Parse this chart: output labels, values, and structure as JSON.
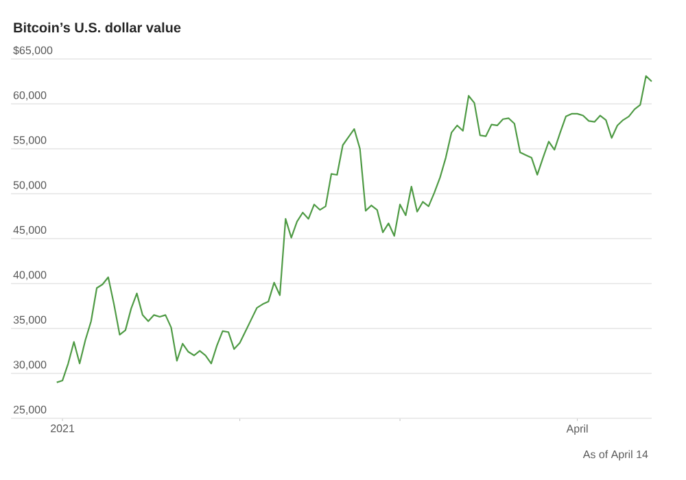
{
  "chart_data": {
    "type": "line",
    "title": "Bitcoin’s U.S. dollar value",
    "x": [
      "2020-12-31",
      "2021-01-01",
      "2021-01-02",
      "2021-01-03",
      "2021-01-04",
      "2021-01-05",
      "2021-01-06",
      "2021-01-07",
      "2021-01-08",
      "2021-01-09",
      "2021-01-10",
      "2021-01-11",
      "2021-01-12",
      "2021-01-13",
      "2021-01-14",
      "2021-01-15",
      "2021-01-16",
      "2021-01-17",
      "2021-01-18",
      "2021-01-19",
      "2021-01-20",
      "2021-01-21",
      "2021-01-22",
      "2021-01-23",
      "2021-01-24",
      "2021-01-25",
      "2021-01-26",
      "2021-01-27",
      "2021-01-28",
      "2021-01-29",
      "2021-01-30",
      "2021-01-31",
      "2021-02-01",
      "2021-02-02",
      "2021-02-03",
      "2021-02-04",
      "2021-02-05",
      "2021-02-06",
      "2021-02-07",
      "2021-02-08",
      "2021-02-09",
      "2021-02-10",
      "2021-02-11",
      "2021-02-12",
      "2021-02-13",
      "2021-02-14",
      "2021-02-15",
      "2021-02-16",
      "2021-02-17",
      "2021-02-18",
      "2021-02-19",
      "2021-02-20",
      "2021-02-21",
      "2021-02-22",
      "2021-02-23",
      "2021-02-24",
      "2021-02-25",
      "2021-02-26",
      "2021-02-27",
      "2021-02-28",
      "2021-03-01",
      "2021-03-02",
      "2021-03-03",
      "2021-03-04",
      "2021-03-05",
      "2021-03-06",
      "2021-03-07",
      "2021-03-08",
      "2021-03-09",
      "2021-03-10",
      "2021-03-11",
      "2021-03-12",
      "2021-03-13",
      "2021-03-14",
      "2021-03-15",
      "2021-03-16",
      "2021-03-17",
      "2021-03-18",
      "2021-03-19",
      "2021-03-20",
      "2021-03-21",
      "2021-03-22",
      "2021-03-23",
      "2021-03-24",
      "2021-03-25",
      "2021-03-26",
      "2021-03-27",
      "2021-03-28",
      "2021-03-29",
      "2021-03-30",
      "2021-03-31",
      "2021-04-01",
      "2021-04-02",
      "2021-04-03",
      "2021-04-04",
      "2021-04-05",
      "2021-04-06",
      "2021-04-07",
      "2021-04-08",
      "2021-04-09",
      "2021-04-10",
      "2021-04-11",
      "2021-04-12",
      "2021-04-13",
      "2021-04-14"
    ],
    "values": [
      29000,
      29200,
      31100,
      33500,
      31100,
      33700,
      35800,
      39500,
      39900,
      40700,
      37700,
      34300,
      34800,
      37200,
      38900,
      36500,
      35800,
      36500,
      36300,
      36500,
      35100,
      31400,
      33300,
      32400,
      32000,
      32500,
      32000,
      31100,
      33100,
      34700,
      34600,
      32700,
      33400,
      34700,
      36000,
      37300,
      37700,
      38000,
      40100,
      38700,
      47200,
      45100,
      46900,
      47900,
      47200,
      48800,
      48200,
      48600,
      52200,
      52100,
      55400,
      56300,
      57200,
      55000,
      48100,
      48700,
      48200,
      45700,
      46700,
      45300,
      48800,
      47600,
      50800,
      48000,
      49100,
      48600,
      50100,
      51800,
      54000,
      56800,
      57600,
      57000,
      60900,
      60100,
      56500,
      56400,
      57700,
      57600,
      58300,
      58400,
      57800,
      54600,
      54300,
      54000,
      52100,
      54000,
      55800,
      54900,
      56800,
      58600,
      58900,
      58900,
      58700,
      58100,
      58000,
      58700,
      58200,
      56200,
      57600,
      58200,
      58600,
      59400,
      59900,
      63100,
      62500
    ],
    "color": "#4e9a44",
    "xlim": [
      "2020-12-23",
      "2021-04-14"
    ],
    "xticks": [
      {
        "value": "2021-01-01",
        "label": "2021"
      },
      {
        "value": "2021-02-01",
        "label": null
      },
      {
        "value": "2021-03-01",
        "label": null
      },
      {
        "value": "2021-04-01",
        "label": "April"
      }
    ],
    "ylim": [
      25000,
      65000
    ],
    "yticks": [
      {
        "value": 25000,
        "label": "25,000"
      },
      {
        "value": 30000,
        "label": "30,000"
      },
      {
        "value": 35000,
        "label": "35,000"
      },
      {
        "value": 40000,
        "label": "40,000"
      },
      {
        "value": 45000,
        "label": "45,000"
      },
      {
        "value": 50000,
        "label": "50,000"
      },
      {
        "value": 55000,
        "label": "55,000"
      },
      {
        "value": 60000,
        "label": "60,000"
      },
      {
        "value": 65000,
        "label": "$65,000"
      }
    ],
    "grid": "y",
    "marker": "none",
    "line_style": "solid",
    "annotations": [
      "As of April 14"
    ]
  }
}
